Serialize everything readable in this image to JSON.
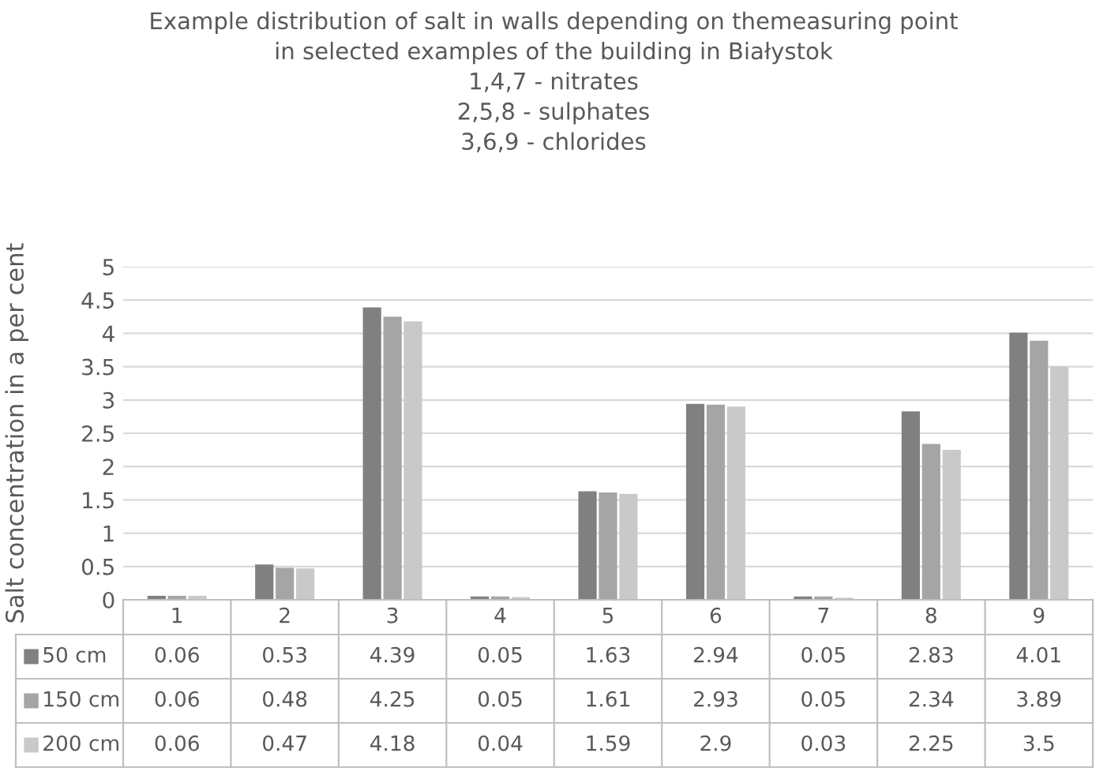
{
  "chart_data": {
    "type": "bar",
    "title": "Example distribution of salt in walls depending on themeasuring point\nin selected examples of the building in Białystok\n1,4,7 - nitrates\n2,5,8 - sulphates\n3,6,9 - chlorides",
    "ylabel": "Salt concentration in a per cent",
    "categories": [
      "1",
      "2",
      "3",
      "4",
      "5",
      "6",
      "7",
      "8",
      "9"
    ],
    "series": [
      {
        "name": "50 cm",
        "color": "#808080",
        "values": [
          0.06,
          0.53,
          4.39,
          0.05,
          1.63,
          2.94,
          0.05,
          2.83,
          4.01
        ]
      },
      {
        "name": "150 cm",
        "color": "#a5a5a5",
        "values": [
          0.06,
          0.48,
          4.25,
          0.05,
          1.61,
          2.93,
          0.05,
          2.34,
          3.89
        ]
      },
      {
        "name": "200 cm",
        "color": "#c9c9c9",
        "values": [
          0.06,
          0.47,
          4.18,
          0.04,
          1.59,
          2.9,
          0.03,
          2.25,
          3.5
        ]
      }
    ],
    "ylim": [
      0,
      5
    ],
    "yticks": [
      0,
      0.5,
      1,
      1.5,
      2,
      2.5,
      3,
      3.5,
      4,
      4.5,
      5
    ],
    "grid": "y",
    "data_labels": true,
    "legend": "bottom"
  }
}
